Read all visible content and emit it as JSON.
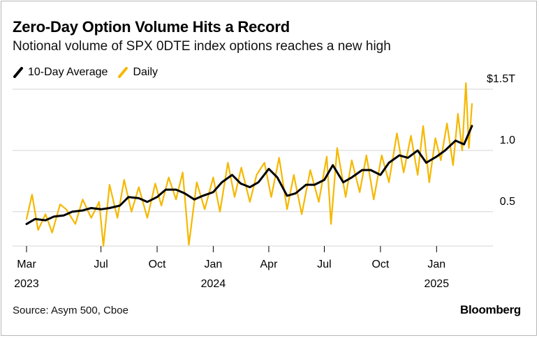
{
  "title": "Zero-Day Option Volume Hits a Record",
  "subtitle": "Notional volume of SPX 0DTE index options reaches a new high",
  "source": "Source: Asym 500, Cboe",
  "brand": "Bloomberg",
  "colors": {
    "average": "#000000",
    "daily": "#f5b800",
    "grid": "#d4d4d4"
  },
  "chart_data": {
    "type": "line",
    "x_axis": {
      "range": [
        "2023-03-01",
        "2025-02-28"
      ],
      "ticks": [
        {
          "date": "2023-03-01",
          "label": "Mar",
          "year": "2023"
        },
        {
          "date": "2023-07-01",
          "label": "Jul",
          "year": ""
        },
        {
          "date": "2023-10-01",
          "label": "Oct",
          "year": ""
        },
        {
          "date": "2024-01-01",
          "label": "Jan",
          "year": "2024"
        },
        {
          "date": "2024-04-01",
          "label": "Apr",
          "year": ""
        },
        {
          "date": "2024-07-01",
          "label": "Jul",
          "year": ""
        },
        {
          "date": "2024-10-01",
          "label": "Oct",
          "year": ""
        },
        {
          "date": "2025-01-01",
          "label": "Jan",
          "year": "2025"
        }
      ]
    },
    "y_axis": {
      "range": [
        0.22,
        1.5
      ],
      "ticks": [
        {
          "value": 0.5,
          "label": "0.5"
        },
        {
          "value": 1.0,
          "label": "1.0"
        },
        {
          "value": 1.5,
          "label": "$1.5T"
        }
      ],
      "unit": "trillion USD"
    },
    "grid": true,
    "series": [
      {
        "name": "10-Day Average",
        "points": [
          [
            "2023-03-01",
            0.4
          ],
          [
            "2023-03-15",
            0.44
          ],
          [
            "2023-04-01",
            0.43
          ],
          [
            "2023-04-15",
            0.46
          ],
          [
            "2023-05-01",
            0.47
          ],
          [
            "2023-05-15",
            0.5
          ],
          [
            "2023-06-01",
            0.51
          ],
          [
            "2023-06-15",
            0.53
          ],
          [
            "2023-07-01",
            0.52
          ],
          [
            "2023-07-15",
            0.53
          ],
          [
            "2023-08-01",
            0.55
          ],
          [
            "2023-08-15",
            0.62
          ],
          [
            "2023-09-01",
            0.61
          ],
          [
            "2023-09-15",
            0.58
          ],
          [
            "2023-10-01",
            0.62
          ],
          [
            "2023-10-15",
            0.68
          ],
          [
            "2023-11-01",
            0.68
          ],
          [
            "2023-11-15",
            0.65
          ],
          [
            "2023-12-01",
            0.6
          ],
          [
            "2023-12-15",
            0.63
          ],
          [
            "2024-01-01",
            0.66
          ],
          [
            "2024-01-15",
            0.74
          ],
          [
            "2024-02-01",
            0.8
          ],
          [
            "2024-02-15",
            0.73
          ],
          [
            "2024-03-01",
            0.7
          ],
          [
            "2024-03-15",
            0.74
          ],
          [
            "2024-04-01",
            0.85
          ],
          [
            "2024-04-15",
            0.78
          ],
          [
            "2024-05-01",
            0.63
          ],
          [
            "2024-05-15",
            0.65
          ],
          [
            "2024-06-01",
            0.72
          ],
          [
            "2024-06-15",
            0.72
          ],
          [
            "2024-07-01",
            0.76
          ],
          [
            "2024-07-15",
            0.88
          ],
          [
            "2024-08-01",
            0.74
          ],
          [
            "2024-08-15",
            0.78
          ],
          [
            "2024-09-01",
            0.84
          ],
          [
            "2024-09-15",
            0.84
          ],
          [
            "2024-10-01",
            0.8
          ],
          [
            "2024-10-15",
            0.9
          ],
          [
            "2024-11-01",
            0.96
          ],
          [
            "2024-11-15",
            0.94
          ],
          [
            "2024-12-01",
            1.0
          ],
          [
            "2024-12-15",
            0.9
          ],
          [
            "2025-01-01",
            0.95
          ],
          [
            "2025-01-15",
            1.0
          ],
          [
            "2025-02-01",
            1.08
          ],
          [
            "2025-02-15",
            1.05
          ],
          [
            "2025-02-28",
            1.2
          ]
        ]
      },
      {
        "name": "Daily",
        "points": [
          [
            "2023-03-01",
            0.44
          ],
          [
            "2023-03-10",
            0.64
          ],
          [
            "2023-03-20",
            0.35
          ],
          [
            "2023-04-01",
            0.48
          ],
          [
            "2023-04-12",
            0.33
          ],
          [
            "2023-04-25",
            0.56
          ],
          [
            "2023-05-05",
            0.52
          ],
          [
            "2023-05-20",
            0.4
          ],
          [
            "2023-06-01",
            0.6
          ],
          [
            "2023-06-15",
            0.45
          ],
          [
            "2023-06-28",
            0.58
          ],
          [
            "2023-07-05",
            0.22
          ],
          [
            "2023-07-15",
            0.72
          ],
          [
            "2023-07-28",
            0.45
          ],
          [
            "2023-08-08",
            0.76
          ],
          [
            "2023-08-20",
            0.5
          ],
          [
            "2023-09-01",
            0.7
          ],
          [
            "2023-09-15",
            0.45
          ],
          [
            "2023-09-28",
            0.73
          ],
          [
            "2023-10-08",
            0.55
          ],
          [
            "2023-10-20",
            0.78
          ],
          [
            "2023-11-01",
            0.6
          ],
          [
            "2023-11-12",
            0.82
          ],
          [
            "2023-11-22",
            0.23
          ],
          [
            "2023-12-05",
            0.74
          ],
          [
            "2023-12-18",
            0.52
          ],
          [
            "2024-01-01",
            0.78
          ],
          [
            "2024-01-12",
            0.5
          ],
          [
            "2024-01-25",
            0.9
          ],
          [
            "2024-02-05",
            0.62
          ],
          [
            "2024-02-16",
            0.86
          ],
          [
            "2024-03-01",
            0.58
          ],
          [
            "2024-03-12",
            0.8
          ],
          [
            "2024-03-25",
            0.9
          ],
          [
            "2024-04-05",
            0.62
          ],
          [
            "2024-04-18",
            0.94
          ],
          [
            "2024-05-01",
            0.52
          ],
          [
            "2024-05-12",
            0.8
          ],
          [
            "2024-05-25",
            0.48
          ],
          [
            "2024-06-08",
            0.84
          ],
          [
            "2024-06-22",
            0.58
          ],
          [
            "2024-07-05",
            0.95
          ],
          [
            "2024-07-12",
            0.4
          ],
          [
            "2024-07-22",
            1.02
          ],
          [
            "2024-08-05",
            0.62
          ],
          [
            "2024-08-15",
            0.92
          ],
          [
            "2024-08-28",
            0.66
          ],
          [
            "2024-09-08",
            0.96
          ],
          [
            "2024-09-20",
            0.6
          ],
          [
            "2024-10-03",
            0.96
          ],
          [
            "2024-10-15",
            0.74
          ],
          [
            "2024-10-28",
            1.14
          ],
          [
            "2024-11-08",
            0.82
          ],
          [
            "2024-11-20",
            1.12
          ],
          [
            "2024-12-01",
            0.8
          ],
          [
            "2024-12-10",
            1.2
          ],
          [
            "2024-12-20",
            0.74
          ],
          [
            "2024-12-30",
            1.1
          ],
          [
            "2025-01-08",
            0.92
          ],
          [
            "2025-01-18",
            1.22
          ],
          [
            "2025-01-28",
            0.88
          ],
          [
            "2025-02-05",
            1.3
          ],
          [
            "2025-02-12",
            1.0
          ],
          [
            "2025-02-18",
            1.55
          ],
          [
            "2025-02-23",
            1.02
          ],
          [
            "2025-02-28",
            1.38
          ]
        ]
      }
    ]
  }
}
